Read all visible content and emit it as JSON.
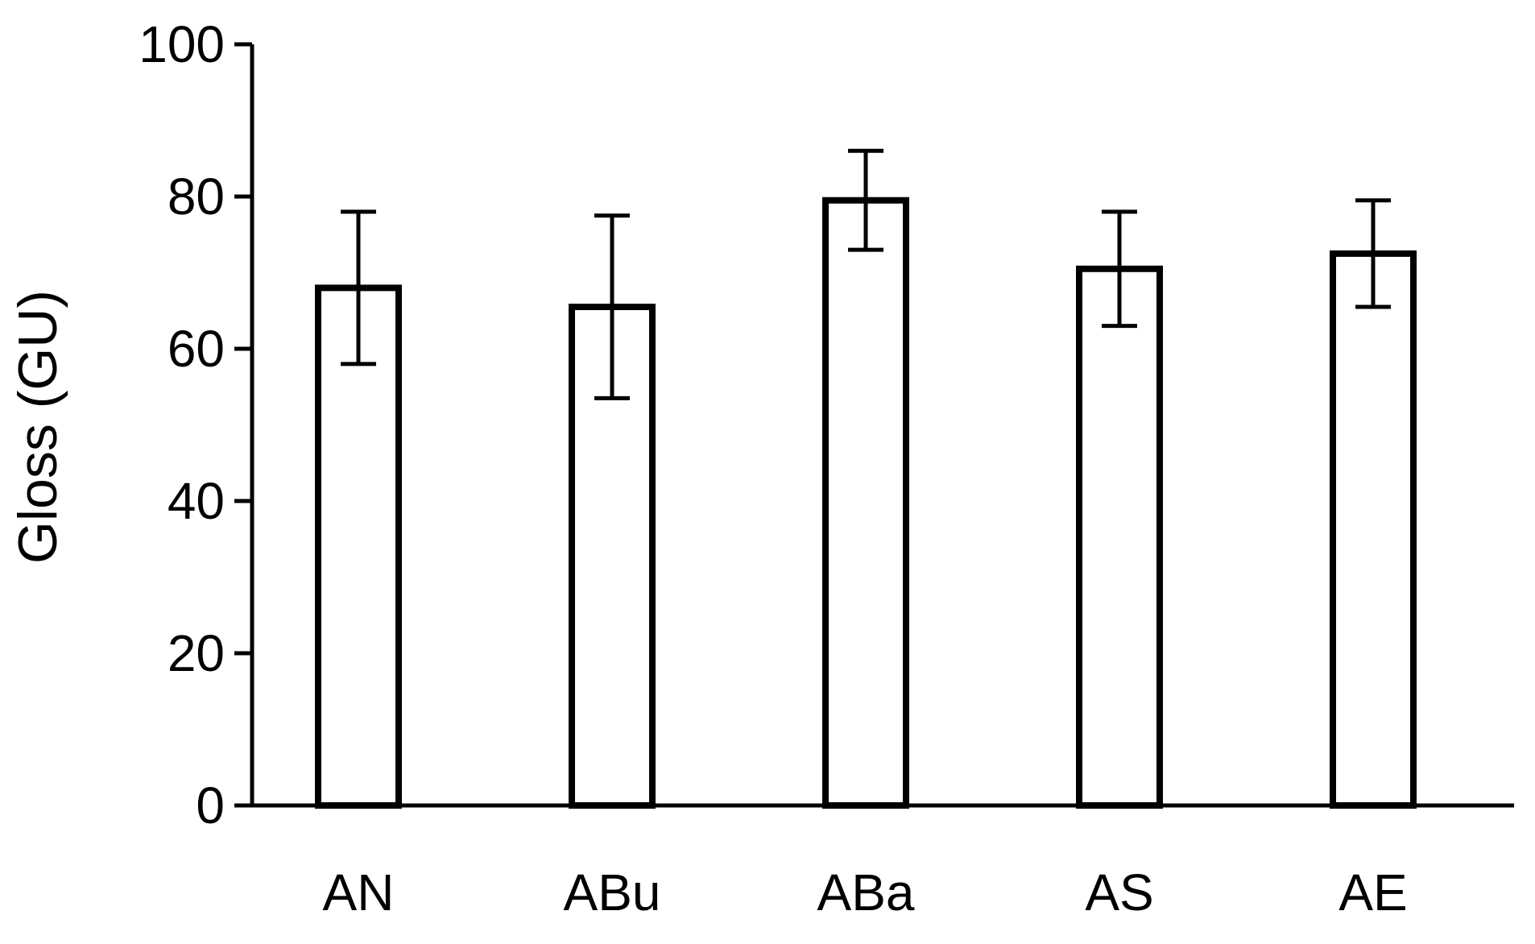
{
  "chart_data": {
    "type": "bar",
    "ylabel": "Gloss (GU)",
    "xlabel": "",
    "ylim": [
      0,
      100
    ],
    "yticks": [
      "0",
      "20",
      "40",
      "60",
      "80",
      "100"
    ],
    "categories": [
      "AN",
      "ABu",
      "ABa",
      "AS",
      "AE"
    ],
    "values": [
      68,
      65.5,
      79.5,
      70.5,
      72.5
    ],
    "errors": [
      10,
      12,
      6.5,
      7.5,
      7
    ],
    "bar_fill": "#ffffff",
    "bar_stroke": "#000000",
    "grid": false,
    "legend": "none"
  }
}
